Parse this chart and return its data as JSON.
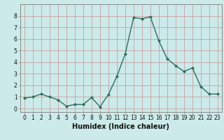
{
  "x": [
    0,
    1,
    2,
    3,
    4,
    5,
    6,
    7,
    8,
    9,
    10,
    11,
    12,
    13,
    14,
    15,
    16,
    17,
    18,
    19,
    20,
    21,
    22,
    23
  ],
  "y": [
    0.9,
    1.0,
    1.25,
    1.0,
    0.75,
    0.2,
    0.35,
    0.35,
    0.95,
    0.15,
    1.2,
    2.75,
    4.7,
    7.85,
    7.75,
    7.9,
    5.85,
    4.3,
    3.7,
    3.2,
    3.5,
    1.9,
    1.25,
    1.25
  ],
  "line_color": "#2d6e5e",
  "marker": "D",
  "marker_size": 2.0,
  "bg_color": "#cceaea",
  "grid_color": "#c8a0a0",
  "xlabel": "Humidex (Indice chaleur)",
  "xlim": [
    -0.5,
    23.5
  ],
  "ylim": [
    -0.3,
    9.0
  ],
  "yticks": [
    0,
    1,
    2,
    3,
    4,
    5,
    6,
    7,
    8
  ],
  "xticks": [
    0,
    1,
    2,
    3,
    4,
    5,
    6,
    7,
    8,
    9,
    10,
    11,
    12,
    13,
    14,
    15,
    16,
    17,
    18,
    19,
    20,
    21,
    22,
    23
  ],
  "tick_fontsize": 5.5,
  "xlabel_fontsize": 7,
  "linewidth": 1.0,
  "spine_color": "#888888"
}
